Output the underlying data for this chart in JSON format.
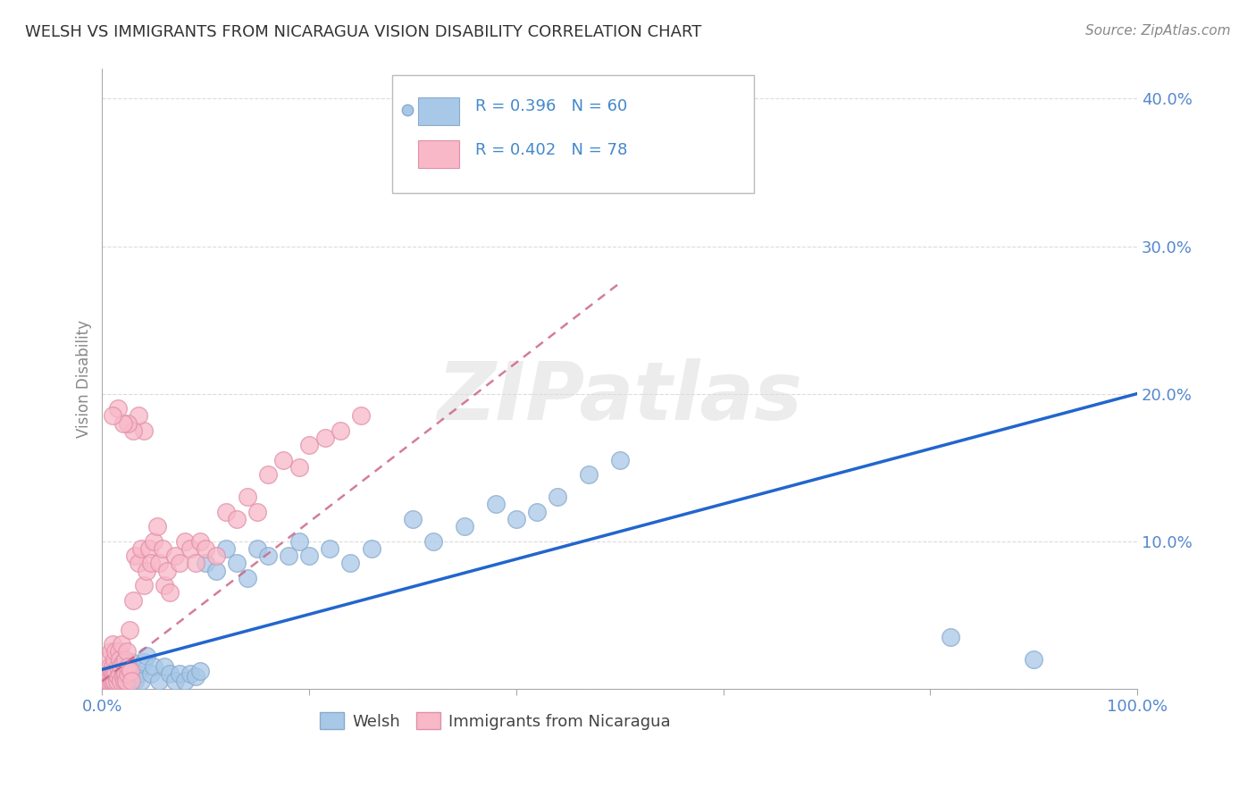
{
  "title": "WELSH VS IMMIGRANTS FROM NICARAGUA VISION DISABILITY CORRELATION CHART",
  "source": "Source: ZipAtlas.com",
  "ylabel": "Vision Disability",
  "watermark": "ZIPatlas",
  "xlim": [
    0.0,
    1.0
  ],
  "ylim": [
    0.0,
    0.42
  ],
  "xticks": [
    0.0,
    0.2,
    0.4,
    0.6,
    0.8,
    1.0
  ],
  "xtick_labels": [
    "0.0%",
    "",
    "",
    "",
    "",
    "100.0%"
  ],
  "yticks": [
    0.0,
    0.1,
    0.2,
    0.3,
    0.4
  ],
  "ytick_labels": [
    "",
    "10.0%",
    "20.0%",
    "30.0%",
    "40.0%"
  ],
  "R_welsh": 0.396,
  "N_welsh": 60,
  "R_nicaragua": 0.402,
  "N_nicaragua": 78,
  "welsh_color": "#a8c8e8",
  "welsh_edge_color": "#88aacc",
  "nicaragua_color": "#f8b8c8",
  "nicaragua_edge_color": "#e090a8",
  "welsh_line_color": "#2266cc",
  "nicaragua_line_color": "#cc6688",
  "grid_color": "#cccccc",
  "title_color": "#333333",
  "tick_color": "#5588cc",
  "legend_label_color": "#4488cc",
  "welsh_scatter_x": [
    0.005,
    0.007,
    0.008,
    0.01,
    0.01,
    0.012,
    0.013,
    0.015,
    0.015,
    0.017,
    0.018,
    0.019,
    0.02,
    0.02,
    0.022,
    0.023,
    0.025,
    0.027,
    0.028,
    0.03,
    0.032,
    0.035,
    0.038,
    0.04,
    0.043,
    0.047,
    0.05,
    0.055,
    0.06,
    0.065,
    0.07,
    0.075,
    0.08,
    0.085,
    0.09,
    0.095,
    0.1,
    0.11,
    0.12,
    0.13,
    0.14,
    0.15,
    0.16,
    0.18,
    0.19,
    0.2,
    0.22,
    0.24,
    0.26,
    0.3,
    0.32,
    0.35,
    0.38,
    0.4,
    0.42,
    0.44,
    0.47,
    0.5,
    0.82,
    0.9
  ],
  "welsh_scatter_y": [
    0.005,
    0.008,
    0.012,
    0.005,
    0.01,
    0.008,
    0.012,
    0.005,
    0.01,
    0.008,
    0.013,
    0.005,
    0.01,
    0.015,
    0.005,
    0.012,
    0.01,
    0.005,
    0.018,
    0.012,
    0.005,
    0.01,
    0.005,
    0.018,
    0.022,
    0.01,
    0.015,
    0.005,
    0.015,
    0.01,
    0.005,
    0.01,
    0.005,
    0.01,
    0.008,
    0.012,
    0.085,
    0.08,
    0.095,
    0.085,
    0.075,
    0.095,
    0.09,
    0.09,
    0.1,
    0.09,
    0.095,
    0.085,
    0.095,
    0.115,
    0.1,
    0.11,
    0.125,
    0.115,
    0.12,
    0.13,
    0.145,
    0.155,
    0.035,
    0.02
  ],
  "nicaragua_scatter_x": [
    0.003,
    0.005,
    0.005,
    0.006,
    0.007,
    0.008,
    0.008,
    0.009,
    0.01,
    0.01,
    0.01,
    0.011,
    0.012,
    0.012,
    0.013,
    0.013,
    0.014,
    0.015,
    0.015,
    0.016,
    0.017,
    0.017,
    0.018,
    0.018,
    0.019,
    0.02,
    0.02,
    0.021,
    0.022,
    0.022,
    0.023,
    0.024,
    0.025,
    0.025,
    0.026,
    0.027,
    0.028,
    0.03,
    0.032,
    0.035,
    0.038,
    0.04,
    0.043,
    0.045,
    0.047,
    0.05,
    0.053,
    0.055,
    0.058,
    0.06,
    0.063,
    0.065,
    0.07,
    0.075,
    0.08,
    0.085,
    0.09,
    0.095,
    0.1,
    0.11,
    0.12,
    0.13,
    0.14,
    0.15,
    0.16,
    0.175,
    0.19,
    0.2,
    0.215,
    0.23,
    0.25,
    0.04,
    0.035,
    0.03,
    0.025,
    0.02,
    0.015,
    0.01
  ],
  "nicaragua_scatter_y": [
    0.005,
    0.01,
    0.02,
    0.005,
    0.015,
    0.025,
    0.005,
    0.012,
    0.005,
    0.015,
    0.03,
    0.01,
    0.02,
    0.005,
    0.01,
    0.025,
    0.005,
    0.008,
    0.015,
    0.025,
    0.01,
    0.02,
    0.005,
    0.015,
    0.03,
    0.008,
    0.018,
    0.005,
    0.01,
    0.02,
    0.005,
    0.025,
    0.01,
    0.015,
    0.04,
    0.012,
    0.005,
    0.06,
    0.09,
    0.085,
    0.095,
    0.07,
    0.08,
    0.095,
    0.085,
    0.1,
    0.11,
    0.085,
    0.095,
    0.07,
    0.08,
    0.065,
    0.09,
    0.085,
    0.1,
    0.095,
    0.085,
    0.1,
    0.095,
    0.09,
    0.12,
    0.115,
    0.13,
    0.12,
    0.145,
    0.155,
    0.15,
    0.165,
    0.17,
    0.175,
    0.185,
    0.175,
    0.185,
    0.175,
    0.18,
    0.18,
    0.19,
    0.185
  ],
  "welsh_line_x0": 0.0,
  "welsh_line_y0": 0.013,
  "welsh_line_x1": 1.0,
  "welsh_line_y1": 0.2,
  "nic_line_x0": 0.0,
  "nic_line_y0": 0.005,
  "nic_line_x1": 0.5,
  "nic_line_y1": 0.275
}
